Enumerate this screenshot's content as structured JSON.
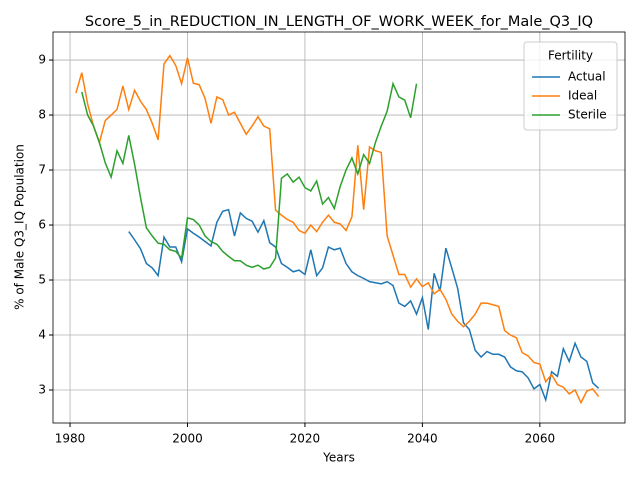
{
  "chart_data": {
    "type": "line",
    "title": "Score_5_in_REDUCTION_IN_LENGTH_OF_WORK_WEEK_for_Male_Q3_IQ",
    "xlabel": "Years",
    "ylabel": "% of Male Q3_IQ Population",
    "x": [
      1981,
      1982,
      1983,
      1984,
      1985,
      1986,
      1987,
      1988,
      1989,
      1990,
      1991,
      1992,
      1993,
      1994,
      1995,
      1996,
      1997,
      1998,
      1999,
      2000,
      2001,
      2002,
      2003,
      2004,
      2005,
      2006,
      2007,
      2008,
      2009,
      2010,
      2011,
      2012,
      2013,
      2014,
      2015,
      2016,
      2017,
      2018,
      2019,
      2020,
      2021,
      2022,
      2023,
      2024,
      2025,
      2026,
      2027,
      2028,
      2029,
      2030,
      2031,
      2032,
      2033,
      2034,
      2035,
      2036,
      2037,
      2038,
      2039,
      2040,
      2041,
      2042,
      2043,
      2044,
      2045,
      2046,
      2047,
      2048,
      2049,
      2050,
      2051,
      2052,
      2053,
      2054,
      2055,
      2056,
      2057,
      2058,
      2059,
      2060,
      2061,
      2062,
      2063,
      2064,
      2065,
      2066,
      2067,
      2068,
      2069,
      2070
    ],
    "series": [
      {
        "name": "Actual",
        "color": "#1f77b4",
        "values": [
          null,
          null,
          null,
          null,
          null,
          null,
          null,
          null,
          null,
          5.88,
          5.73,
          5.57,
          5.3,
          5.22,
          5.08,
          5.78,
          5.6,
          5.6,
          5.33,
          5.93,
          5.85,
          5.78,
          5.7,
          5.62,
          6.05,
          6.25,
          6.28,
          5.8,
          6.22,
          6.12,
          6.07,
          5.87,
          6.08,
          5.68,
          5.6,
          5.3,
          5.23,
          5.15,
          5.18,
          5.1,
          5.55,
          5.08,
          5.22,
          5.6,
          5.55,
          5.58,
          5.3,
          5.15,
          5.08,
          5.03,
          4.97,
          4.95,
          4.93,
          4.97,
          4.9,
          4.58,
          4.52,
          4.62,
          4.38,
          4.68,
          4.1,
          5.12,
          4.8,
          5.58,
          5.22,
          4.85,
          4.22,
          4.1,
          3.72,
          3.6,
          3.7,
          3.65,
          3.65,
          3.6,
          3.42,
          3.35,
          3.33,
          3.22,
          3.02,
          3.1,
          2.82,
          3.33,
          3.25,
          3.75,
          3.52,
          3.85,
          3.6,
          3.52,
          3.13,
          3.03
        ]
      },
      {
        "name": "Ideal",
        "color": "#ff7f0e",
        "values": [
          8.4,
          8.77,
          8.2,
          7.8,
          7.5,
          7.9,
          8.0,
          8.1,
          8.53,
          8.1,
          8.45,
          8.25,
          8.1,
          7.85,
          7.55,
          8.93,
          9.08,
          8.9,
          8.57,
          9.04,
          8.58,
          8.55,
          8.3,
          7.85,
          8.33,
          8.28,
          8.0,
          8.05,
          7.85,
          7.65,
          7.8,
          7.97,
          7.8,
          7.75,
          6.27,
          6.18,
          6.1,
          6.05,
          5.9,
          5.85,
          6.0,
          5.88,
          6.05,
          6.18,
          6.05,
          6.02,
          5.9,
          6.15,
          7.45,
          6.28,
          7.42,
          7.35,
          7.32,
          5.8,
          5.45,
          5.1,
          5.1,
          4.87,
          5.02,
          4.88,
          4.95,
          4.75,
          4.83,
          4.65,
          4.38,
          4.25,
          4.15,
          4.25,
          4.38,
          4.58,
          4.58,
          4.55,
          4.52,
          4.08,
          4.0,
          3.95,
          3.68,
          3.62,
          3.5,
          3.47,
          3.15,
          3.28,
          3.1,
          3.05,
          2.93,
          3.0,
          2.77,
          2.98,
          3.02,
          2.88
        ]
      },
      {
        "name": "Sterile",
        "color": "#2ca02c",
        "values": [
          null,
          8.42,
          8.0,
          7.8,
          7.5,
          7.13,
          6.87,
          7.35,
          7.12,
          7.63,
          7.1,
          6.5,
          5.95,
          5.8,
          5.67,
          5.65,
          5.55,
          5.52,
          5.4,
          6.13,
          6.1,
          6.0,
          5.8,
          5.7,
          5.65,
          5.52,
          5.43,
          5.35,
          5.35,
          5.27,
          5.23,
          5.27,
          5.2,
          5.23,
          5.4,
          6.85,
          6.93,
          6.78,
          6.87,
          6.68,
          6.62,
          6.8,
          6.38,
          6.5,
          6.3,
          6.7,
          7.0,
          7.22,
          6.93,
          7.28,
          7.12,
          7.5,
          7.8,
          8.07,
          8.57,
          8.33,
          8.27,
          7.95,
          8.57,
          null,
          null,
          null,
          null,
          null,
          null,
          null,
          null,
          null,
          null,
          null,
          null,
          null,
          null,
          null,
          null,
          null,
          null,
          null,
          null,
          null,
          null,
          null,
          null,
          null,
          null,
          null,
          null,
          null,
          null,
          null
        ]
      }
    ],
    "xlim": [
      1977.1,
      2074.5
    ],
    "ylim": [
      2.4,
      9.51
    ],
    "xticks": [
      1980,
      2000,
      2020,
      2040,
      2060
    ],
    "yticks": [
      3,
      4,
      5,
      6,
      7,
      8,
      9
    ],
    "grid": true,
    "legend": {
      "title": "Fertility",
      "position": "upper right"
    }
  }
}
